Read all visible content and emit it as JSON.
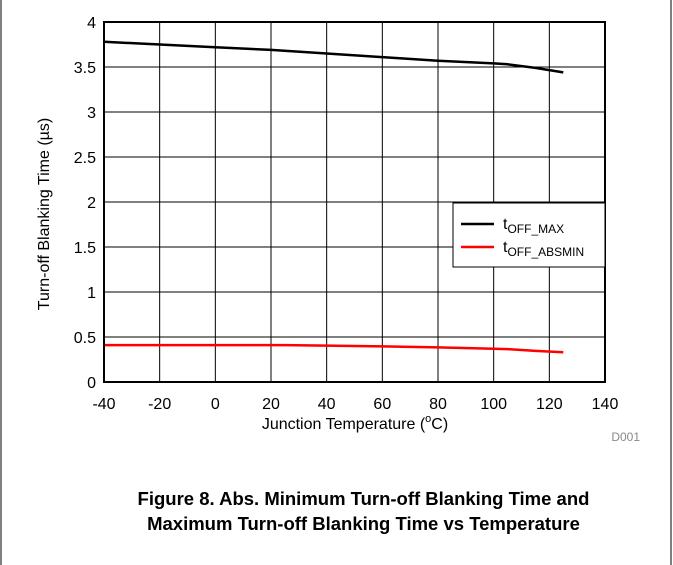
{
  "chart_data": {
    "type": "line",
    "title": "",
    "xlabel": "Junction Temperature (",
    "xlabel_sup": "o",
    "xlabel_tail": "C)",
    "ylabel": "Turn-off Blanking Time (µs)",
    "xlim": [
      -40,
      140
    ],
    "ylim": [
      0,
      4
    ],
    "xticks": [
      "-40",
      "-20",
      "0",
      "20",
      "40",
      "60",
      "80",
      "100",
      "120",
      "140"
    ],
    "yticks": [
      "0",
      "0.5",
      "1",
      "1.5",
      "2",
      "2.5",
      "3",
      "3.5",
      "4"
    ],
    "grid": true,
    "legend_position": "right",
    "series": [
      {
        "name": "t",
        "name_sub": "OFF_MAX",
        "color": "#000000",
        "x": [
          -40,
          -20,
          0,
          20,
          40,
          60,
          80,
          100,
          105,
          115,
          125
        ],
        "y": [
          3.78,
          3.75,
          3.72,
          3.69,
          3.65,
          3.61,
          3.57,
          3.54,
          3.53,
          3.49,
          3.44
        ]
      },
      {
        "name": "t",
        "name_sub": "OFF_ABSMIN",
        "color": "#ff0000",
        "x": [
          -40,
          -20,
          0,
          20,
          25,
          40,
          60,
          80,
          100,
          105,
          115,
          125
        ],
        "y": [
          0.41,
          0.41,
          0.41,
          0.41,
          0.41,
          0.405,
          0.395,
          0.385,
          0.37,
          0.365,
          0.345,
          0.33
        ]
      }
    ]
  },
  "figure_id": "D001",
  "caption": {
    "line1": "Figure 8. Abs. Minimum Turn-off Blanking Time and",
    "line2": "Maximum Turn-off Blanking Time vs Temperature"
  },
  "colors": {
    "border": "#000000",
    "grid": "#000000",
    "id_text": "#888888"
  }
}
